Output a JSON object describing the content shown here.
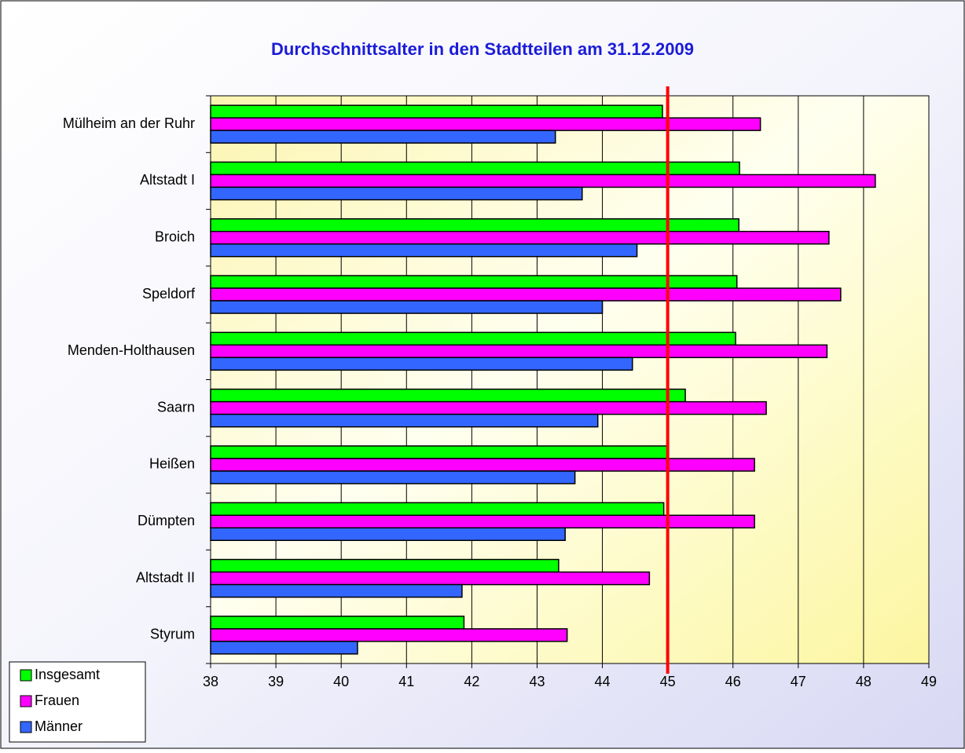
{
  "chart_data": {
    "type": "hbar",
    "title": "Durchschnittsalter in den Stadtteilen am 31.12.2009",
    "categories": [
      "Mülheim an der Ruhr",
      "Altstadt I",
      "Broich",
      "Speldorf",
      "Menden-Holthausen",
      "Saarn",
      "Heißen",
      "Dümpten",
      "Altstadt II",
      "Styrum"
    ],
    "series": [
      {
        "name": "Insgesamt",
        "color": "#00ff00",
        "values": [
          44.92,
          46.1,
          46.09,
          46.06,
          46.04,
          45.27,
          45.0,
          44.94,
          43.33,
          41.88
        ]
      },
      {
        "name": "Frauen",
        "color": "#ff00ff",
        "values": [
          46.42,
          48.18,
          47.47,
          47.65,
          47.44,
          46.51,
          46.33,
          46.33,
          44.72,
          43.46
        ]
      },
      {
        "name": "Männer",
        "color": "#3366ff",
        "values": [
          43.28,
          43.69,
          44.53,
          44.0,
          44.46,
          43.93,
          43.58,
          43.43,
          41.85,
          40.25
        ]
      }
    ],
    "xlim": [
      38,
      49
    ],
    "xticks": [
      38,
      39,
      40,
      41,
      42,
      43,
      44,
      45,
      46,
      47,
      48,
      49
    ],
    "grid": true,
    "reference_line": {
      "value": 45,
      "color": "#ff0000"
    },
    "legend": "bottom-left"
  }
}
